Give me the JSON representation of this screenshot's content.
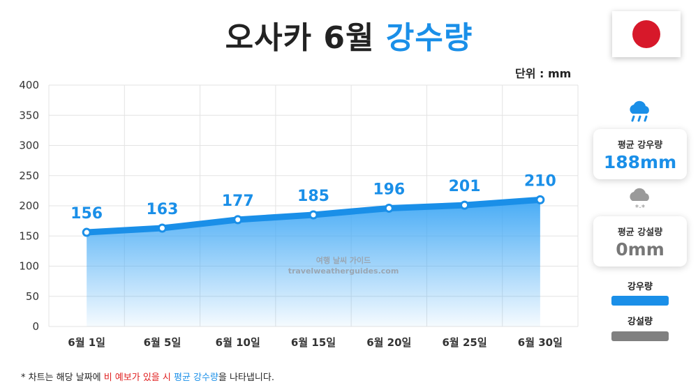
{
  "title": {
    "main": "오사카 6월",
    "highlight": "강수량"
  },
  "unit_label": "단위 : mm",
  "watermark": {
    "line1": "여행 날씨 가이드",
    "line2": "travelweatherguides.com"
  },
  "chart_data": {
    "type": "area",
    "title": "오사카 6월 강수량",
    "categories": [
      "6월 1일",
      "6월 5일",
      "6월 10일",
      "6월 15일",
      "6월 20일",
      "6월 25일",
      "6월 30일"
    ],
    "values": [
      156,
      163,
      177,
      185,
      196,
      201,
      210
    ],
    "ylim": [
      0,
      400
    ],
    "yticks": [
      0,
      50,
      100,
      150,
      200,
      250,
      300,
      350,
      400
    ],
    "grid": true,
    "line_color": "#1a8fe8",
    "fill_color": "#3ea7f5"
  },
  "sidebar": {
    "rain_icon": "rain-cloud-icon",
    "rain_card": {
      "label": "평균 강우량",
      "value": "188mm",
      "color": "#1a8fe8"
    },
    "snow_icon": "snow-cloud-icon",
    "snow_card": {
      "label": "평균 강설량",
      "value": "0mm",
      "color": "#777777"
    },
    "legend": [
      {
        "label": "강우량",
        "color": "#1a8fe8"
      },
      {
        "label": "강설량",
        "color": "#808080"
      }
    ]
  },
  "footnote": {
    "prefix": "* 차트는 해당 날짜에 ",
    "red": "비 예보가 있을 시",
    "mid": " ",
    "blue": "평균 강수량",
    "suffix": "을 나타냅니다."
  }
}
